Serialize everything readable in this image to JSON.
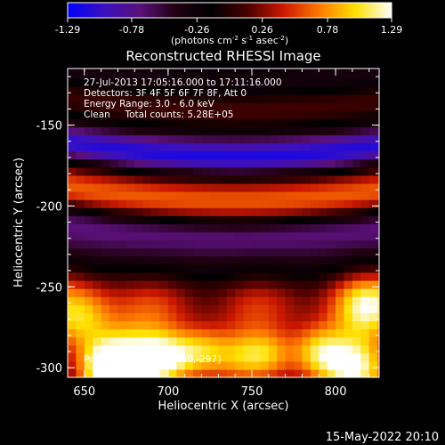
{
  "chart_data": {
    "type": "heatmap",
    "title": "Reconstructed RHESSI Image",
    "xlabel": "Heliocentric X (arcsec)",
    "ylabel": "Heliocentric Y (arcsec)",
    "xlim": [
      640,
      826
    ],
    "ylim": [
      -306,
      -115
    ],
    "x_ticks": [
      650,
      700,
      750,
      800
    ],
    "y_ticks": [
      -300,
      -250,
      -200,
      -150
    ],
    "colorbar": {
      "min": -1.29,
      "max": 1.29,
      "ticks": [
        "-1.29",
        "-0.78",
        "-0.26",
        "0.26",
        "0.78",
        "1.29"
      ],
      "unit_label_parts": [
        "(photons cm",
        "-2",
        " s",
        "-1",
        " asec",
        "-2",
        ")"
      ],
      "stops": [
        "#0000ff",
        "#3a10c0",
        "#5a107a",
        "#200010",
        "#000000",
        "#4a0000",
        "#cc1800",
        "#ff7a00",
        "#ffe000",
        "#ffffff"
      ]
    },
    "annotations": [
      "27-Jul-2013 17:05:16.000 to 17:11:16.000",
      "Detectors: 3F 4F 5F 6F 7F 8F, Att 0",
      "Energy Range: 3.0 - 6.0 keV",
      "Clean     Total counts: 5.28E+05"
    ],
    "peak_label": "Position of peak = [680,-297]",
    "peak_position": [
      680,
      -297
    ],
    "timestamp": "15-May-2022 20:10"
  }
}
